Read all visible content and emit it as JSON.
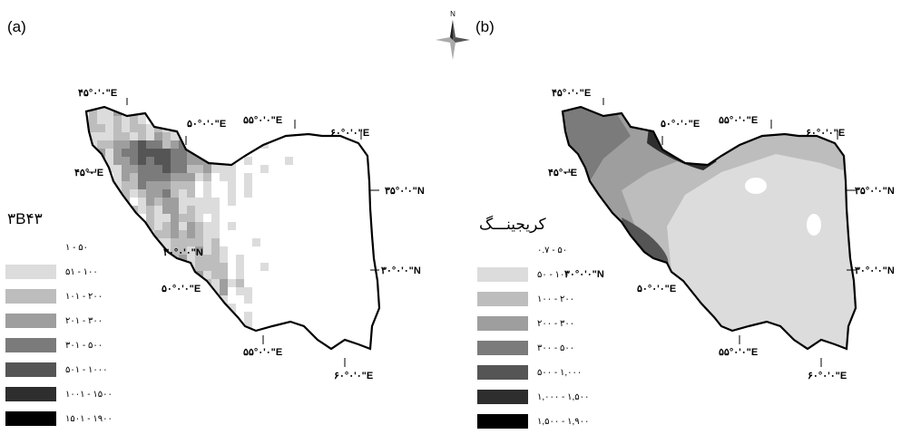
{
  "panels": [
    {
      "label": "(a)",
      "legend_title": "۳B۴۳",
      "classes": [
        {
          "range": "۱ - ۵۰",
          "color": "#ffffff"
        },
        {
          "range": "۵۱ - ۱۰۰",
          "color": "#dcdcdc"
        },
        {
          "range": "۱۰۱ - ۲۰۰",
          "color": "#bdbdbd"
        },
        {
          "range": "۲۰۱ - ۳۰۰",
          "color": "#9e9e9e"
        },
        {
          "range": "۳۰۱ - ۵۰۰",
          "color": "#7b7b7b"
        },
        {
          "range": "۵۰۱ - ۱۰۰۰",
          "color": "#555555"
        },
        {
          "range": "۱۰۰۱ - ۱۵۰۰",
          "color": "#2e2e2e"
        },
        {
          "range": "۱۵۰۱ - ۱۹۰۰",
          "color": "#000000"
        }
      ],
      "coords": [
        {
          "id": "45e-top",
          "text": "۴۵°۰'۰\"E"
        },
        {
          "id": "50e-top",
          "text": "۵۰°۰'۰\"E"
        },
        {
          "id": "55e-top",
          "text": "۵۵°۰'۰\"E"
        },
        {
          "id": "60e-top",
          "text": "۶۰°۰'۰\"E"
        },
        {
          "id": "45-left",
          "text": "۴۵°۰'E"
        },
        {
          "id": "35n",
          "text": "۳۵°۰'۰\"N"
        },
        {
          "id": "30n-inner",
          "text": "۳۰°۰'۰\"N"
        },
        {
          "id": "30n-right",
          "text": "۳۰°۰'۰\"N"
        },
        {
          "id": "50e-mid",
          "text": "۵۰°۰'۰\"E"
        },
        {
          "id": "55e-bot",
          "text": "۵۵°۰'۰\"E"
        },
        {
          "id": "60e-bot",
          "text": "۶۰°۰'۰\"E"
        }
      ]
    },
    {
      "label": "(b)",
      "legend_title": "کریجینـــگ",
      "classes": [
        {
          "range": "۰.۷ - ۵۰",
          "color": "#ffffff"
        },
        {
          "range": "۵۰ - ۱۰۰",
          "color": "#dcdcdc"
        },
        {
          "range": "۱۰۰ - ۲۰۰",
          "color": "#bdbdbd"
        },
        {
          "range": "۲۰۰ - ۳۰۰",
          "color": "#9e9e9e"
        },
        {
          "range": "۳۰۰ - ۵۰۰",
          "color": "#7b7b7b"
        },
        {
          "range": "۵۰۰ - ۱,۰۰۰",
          "color": "#555555"
        },
        {
          "range": "۱,۰۰۰ - ۱,۵۰۰",
          "color": "#2e2e2e"
        },
        {
          "range": "۱,۵۰۰ - ۱,۹۰۰",
          "color": "#000000"
        }
      ],
      "coords": [
        {
          "id": "45e-top",
          "text": "۴۵°۰'۰\"E"
        },
        {
          "id": "50e-top",
          "text": "۵۰°۰'۰\"E"
        },
        {
          "id": "55e-top",
          "text": "۵۵°۰'۰\"E"
        },
        {
          "id": "60e-top",
          "text": "۶۰°۰'۰\"E"
        },
        {
          "id": "45-left",
          "text": "۴۵°۰'E"
        },
        {
          "id": "35n",
          "text": "۳۵°۰'۰\"N"
        },
        {
          "id": "30n-left",
          "text": "۳۰°۰'۰\"N"
        },
        {
          "id": "30n-right",
          "text": "۳۰°۰'۰\"N"
        },
        {
          "id": "50e-mid",
          "text": "۵۰°۰'۰\"E"
        },
        {
          "id": "55e-bot",
          "text": "۵۵°۰'۰\"E"
        },
        {
          "id": "60e-bot",
          "text": "۶۰°۰'۰\"E"
        }
      ]
    }
  ],
  "north_arrow": {
    "letter": "N"
  }
}
